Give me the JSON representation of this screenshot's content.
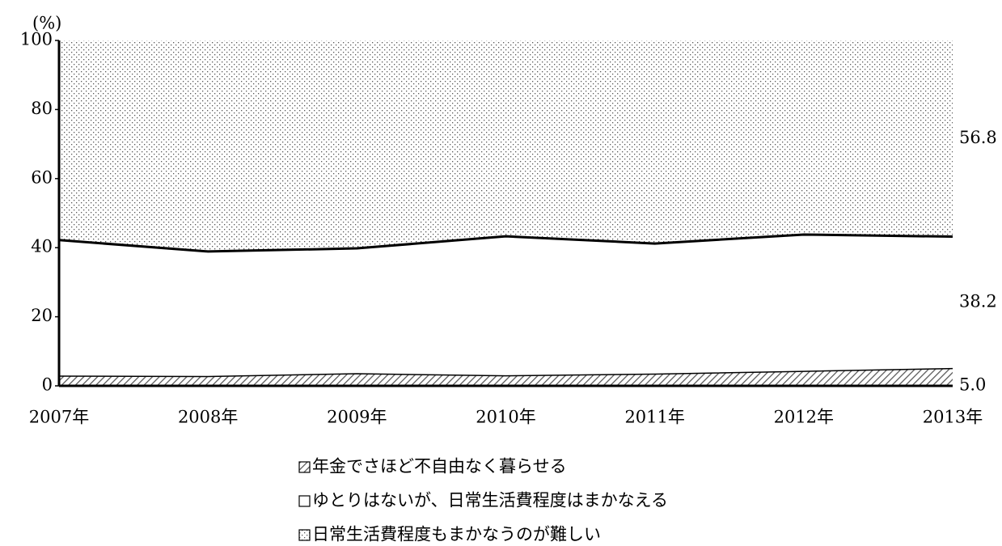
{
  "chart_data": {
    "type": "stacked_area",
    "y_label": "(%)",
    "categories": [
      "2007年",
      "2008年",
      "2009年",
      "2010年",
      "2011年",
      "2012年",
      "2013年"
    ],
    "series": [
      {
        "name": "年金でさほど不自由なく暮らせる",
        "color": "#555555",
        "fill": "hatch",
        "values": [
          2.8,
          2.7,
          3.5,
          2.9,
          3.4,
          4.2,
          5.0
        ],
        "value_labels": [
          null,
          null,
          null,
          null,
          null,
          null,
          "5.0"
        ]
      },
      {
        "name": "ゆとりはないが、日常生活費程度はまかなえる",
        "color": "#ffffff",
        "fill": "solid",
        "values": [
          39.4,
          36.2,
          36.3,
          40.4,
          37.8,
          39.6,
          38.2
        ],
        "value_labels": [
          null,
          null,
          null,
          null,
          null,
          null,
          "38.2"
        ]
      },
      {
        "name": "日常生活費程度もまかなうのが難しい",
        "color": "#555555",
        "fill": "dots",
        "values": [
          57.8,
          61.1,
          60.2,
          56.7,
          58.8,
          56.2,
          56.8
        ],
        "value_labels": [
          null,
          null,
          null,
          null,
          null,
          null,
          "56.8"
        ]
      }
    ],
    "ylim": [
      0,
      100
    ],
    "yticks": [
      0,
      20,
      40,
      60,
      80,
      100
    ],
    "grid": false
  }
}
